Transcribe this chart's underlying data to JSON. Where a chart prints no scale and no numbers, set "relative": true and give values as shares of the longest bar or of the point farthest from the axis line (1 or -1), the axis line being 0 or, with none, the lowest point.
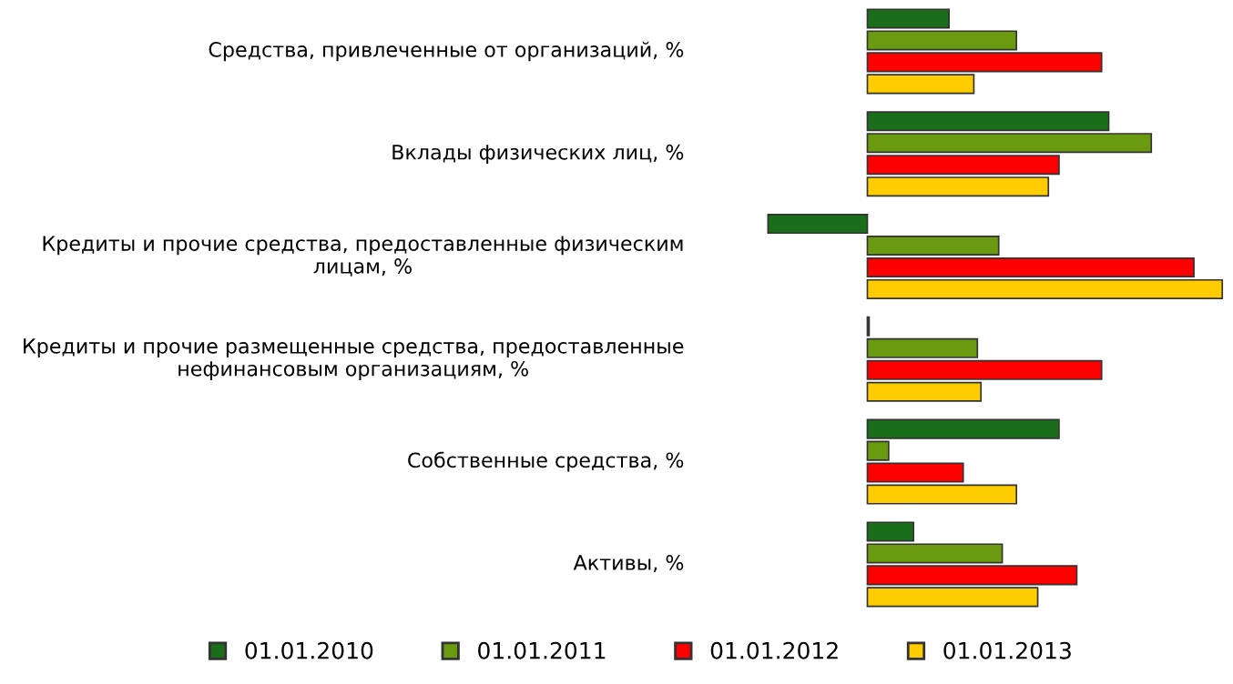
{
  "chart_data": {
    "type": "bar",
    "orientation": "horizontal",
    "relative": true,
    "legend": "bottom",
    "categories": [
      "Средства, привлеченные от организаций, %",
      "Вклады физических лиц, %",
      "Кредиты и прочие средства, предоставленные физическим лицам, %",
      "Кредиты и прочие размещенные средства, предоставленные нефинансовым организациям, %",
      "Собственные средства, %",
      "Активы, %"
    ],
    "series": [
      {
        "name": "01.01.2010",
        "color": "#1a6e1a",
        "values": [
          0.23,
          0.68,
          -0.28,
          0.005,
          0.54,
          0.13
        ]
      },
      {
        "name": "01.01.2011",
        "color": "#6a9a10",
        "values": [
          0.42,
          0.8,
          0.37,
          0.31,
          0.06,
          0.38
        ]
      },
      {
        "name": "01.01.2012",
        "color": "#ff0000",
        "values": [
          0.66,
          0.54,
          0.92,
          0.66,
          0.27,
          0.59
        ]
      },
      {
        "name": "01.01.2013",
        "color": "#ffcc00",
        "values": [
          0.3,
          0.51,
          1.0,
          0.32,
          0.42,
          0.48
        ]
      }
    ]
  }
}
